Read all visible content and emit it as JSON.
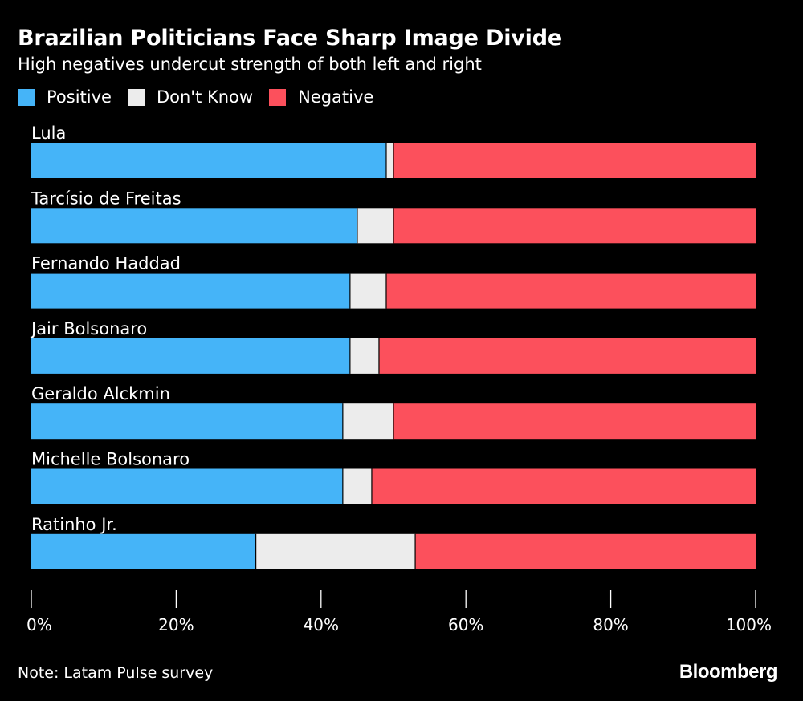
{
  "header": {
    "title": "Brazilian Politicians Face Sharp Image Divide",
    "subtitle": "High negatives undercut strength of both left and right"
  },
  "colors": {
    "positive": "#45b4f8",
    "dont_know": "#ececec",
    "negative": "#fc505c",
    "background": "#000000",
    "text": "#ffffff"
  },
  "chart_data": {
    "type": "bar",
    "orientation": "horizontal",
    "stacked": true,
    "title": "Brazilian Politicians Face Sharp Image Divide",
    "subtitle": "High negatives undercut strength of both left and right",
    "xlabel": "",
    "ylabel": "",
    "xlim": [
      0,
      100
    ],
    "x_ticks": [
      0,
      20,
      40,
      60,
      80,
      100
    ],
    "x_tick_labels": [
      "0%",
      "20%",
      "40%",
      "60%",
      "80%",
      "100%"
    ],
    "legend_position": "top-left",
    "categories": [
      "Lula",
      "Tarcísio de Freitas",
      "Fernando Haddad",
      "Jair Bolsonaro",
      "Geraldo Alckmin",
      "Michelle Bolsonaro",
      "Ratinho Jr."
    ],
    "series": [
      {
        "name": "Positive",
        "color": "#45b4f8",
        "values": [
          49,
          45,
          44,
          44,
          43,
          43,
          31
        ]
      },
      {
        "name": "Don't Know",
        "color": "#ececec",
        "values": [
          1,
          5,
          5,
          4,
          7,
          4,
          22
        ]
      },
      {
        "name": "Negative",
        "color": "#fc505c",
        "values": [
          50,
          50,
          51,
          52,
          50,
          53,
          47
        ]
      }
    ]
  },
  "footer": {
    "note": "Note: Latam Pulse survey",
    "brand": "Bloomberg"
  }
}
